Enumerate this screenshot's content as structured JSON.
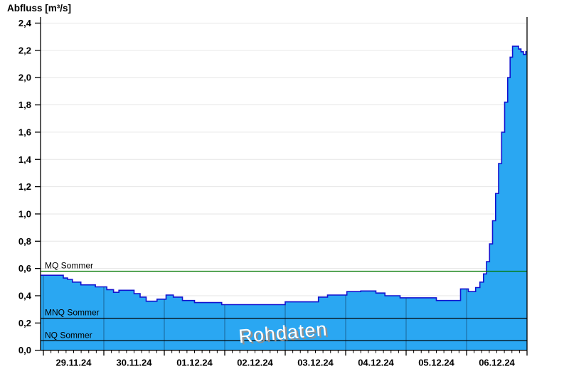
{
  "title": "Abfluss [m³/s]",
  "watermark": "Rohdaten",
  "chart_data": {
    "type": "area",
    "title": "Abfluss [m³/s]",
    "ylabel": "Abfluss [m³/s]",
    "xlabel": "",
    "grid": true,
    "legend": false,
    "ylim": [
      0,
      2.4
    ],
    "ytick_step": 0.2,
    "ytick_labels": [
      "0,0",
      "0,2",
      "0,4",
      "0,6",
      "0,8",
      "1,0",
      "1,2",
      "1,4",
      "1,6",
      "1,8",
      "2,0",
      "2,2",
      "2,4"
    ],
    "x_day_labels": [
      "29.11.24",
      "30.11.24",
      "01.12.24",
      "02.12.24",
      "03.12.24",
      "04.12.24",
      "05.12.24",
      "06.12.24"
    ],
    "x_range_days": [
      -0.047,
      8
    ],
    "minor_tick_hours": 3,
    "reference_lines": [
      {
        "label": "MQ Sommer",
        "value": 0.58,
        "color": "#007700"
      },
      {
        "label": "MNQ Sommer",
        "value": 0.235,
        "color": "#000000"
      },
      {
        "label": "NQ Sommer",
        "value": 0.07,
        "color": "#000000"
      }
    ],
    "series": [
      {
        "name": "Abfluss Rohdaten",
        "unit": "m³/s",
        "step": true,
        "points": [
          [
            -0.047,
            0.55
          ],
          [
            0.33,
            0.53
          ],
          [
            0.4,
            0.52
          ],
          [
            0.48,
            0.5
          ],
          [
            0.62,
            0.48
          ],
          [
            0.86,
            0.465
          ],
          [
            1.05,
            0.445
          ],
          [
            1.16,
            0.425
          ],
          [
            1.25,
            0.44
          ],
          [
            1.5,
            0.415
          ],
          [
            1.6,
            0.39
          ],
          [
            1.7,
            0.36
          ],
          [
            1.88,
            0.375
          ],
          [
            2.03,
            0.405
          ],
          [
            2.15,
            0.39
          ],
          [
            2.3,
            0.365
          ],
          [
            2.5,
            0.35
          ],
          [
            2.95,
            0.335
          ],
          [
            4.0,
            0.355
          ],
          [
            4.55,
            0.39
          ],
          [
            4.7,
            0.405
          ],
          [
            5.02,
            0.43
          ],
          [
            5.25,
            0.435
          ],
          [
            5.5,
            0.42
          ],
          [
            5.65,
            0.4
          ],
          [
            5.9,
            0.385
          ],
          [
            6.5,
            0.365
          ],
          [
            6.9,
            0.45
          ],
          [
            7.03,
            0.43
          ],
          [
            7.15,
            0.46
          ],
          [
            7.22,
            0.5
          ],
          [
            7.28,
            0.56
          ],
          [
            7.33,
            0.65
          ],
          [
            7.38,
            0.78
          ],
          [
            7.43,
            0.95
          ],
          [
            7.48,
            1.15
          ],
          [
            7.53,
            1.37
          ],
          [
            7.58,
            1.6
          ],
          [
            7.63,
            1.82
          ],
          [
            7.68,
            2.0
          ],
          [
            7.72,
            2.15
          ],
          [
            7.76,
            2.23
          ],
          [
            7.86,
            2.21
          ],
          [
            7.9,
            2.19
          ],
          [
            7.94,
            2.17
          ],
          [
            7.98,
            2.19
          ]
        ]
      }
    ],
    "colors": {
      "fill": "#2AA7F2",
      "stroke": "#1212CF",
      "grid": "#E6E6E6",
      "day_gridline": "rgba(15,45,75,0.55)",
      "axis": "#000000",
      "watermark_fill": "#FFFFFF",
      "watermark_shadow": "#909090"
    }
  }
}
